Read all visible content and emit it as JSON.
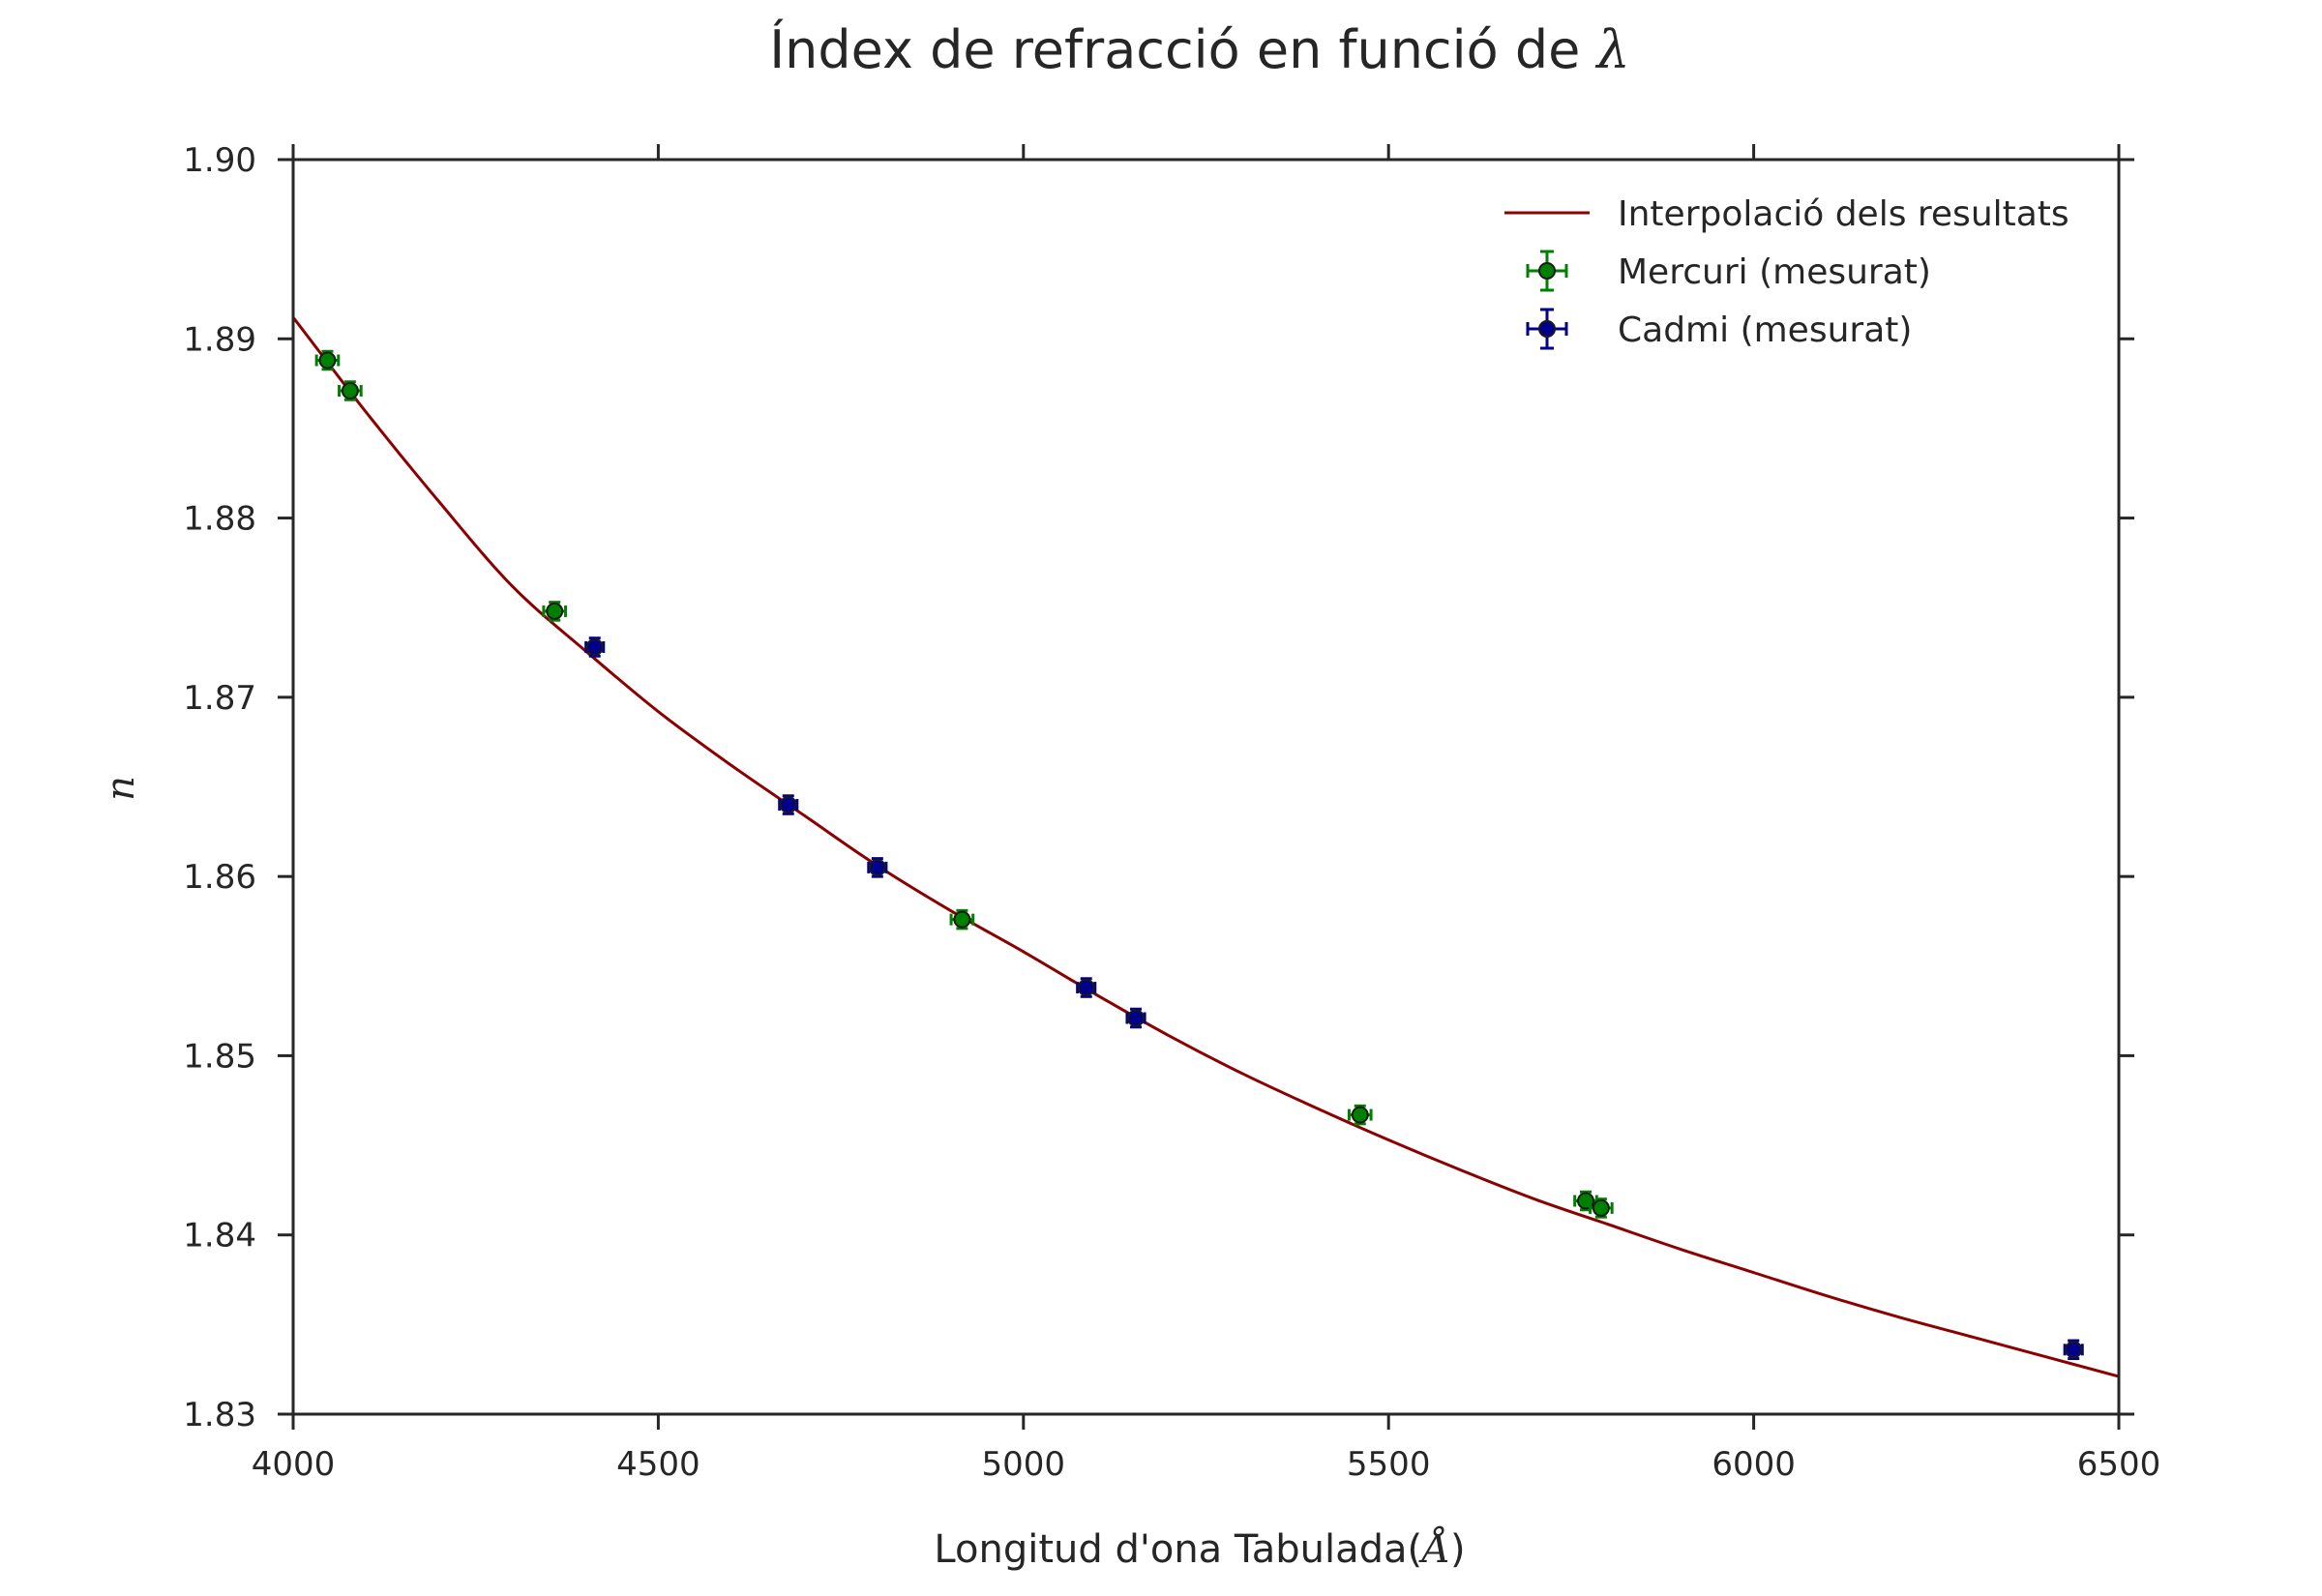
{
  "chart_data": {
    "type": "scatter",
    "title": {
      "text": "Índex de refracció en funció de ",
      "math": "λ"
    },
    "xlabel": {
      "text": "Longitud d'ona Tabulada(",
      "math": "Å",
      "suffix": ")"
    },
    "ylabel": "n",
    "xlim": [
      4000,
      6500
    ],
    "ylim": [
      1.83,
      1.9
    ],
    "x_ticks": [
      4000,
      4500,
      5000,
      5500,
      6000,
      6500
    ],
    "x_tick_labels": [
      "4000",
      "4500",
      "5000",
      "5500",
      "6000",
      "6500"
    ],
    "y_ticks": [
      1.83,
      1.84,
      1.85,
      1.86,
      1.87,
      1.88,
      1.89,
      1.9
    ],
    "y_tick_labels": [
      "1.83",
      "1.84",
      "1.85",
      "1.86",
      "1.87",
      "1.88",
      "1.89",
      "1.90"
    ],
    "grid": false,
    "legend_position": "top-right",
    "fit_curve": {
      "name": "Interpolació dels resultats",
      "color": "#8b0000",
      "x": [
        4000,
        4100,
        4200,
        4300,
        4400,
        4500,
        4600,
        4700,
        4800,
        4900,
        5000,
        5100,
        5200,
        5300,
        5400,
        5500,
        5600,
        5700,
        5800,
        5900,
        6000,
        6100,
        6200,
        6300,
        6400,
        6500
      ],
      "y": [
        1.8912,
        1.8859,
        1.8809,
        1.8762,
        1.8726,
        1.8692,
        1.8662,
        1.8634,
        1.8606,
        1.8581,
        1.8558,
        1.8534,
        1.8511,
        1.849,
        1.8471,
        1.8453,
        1.8436,
        1.842,
        1.8406,
        1.8392,
        1.8379,
        1.8366,
        1.8354,
        1.8343,
        1.8332,
        1.8321
      ]
    },
    "series": [
      {
        "name": "Mercuri (mesurat)",
        "color": "#008000",
        "x": [
          4047,
          4078,
          4358,
          4916,
          5461,
          5770,
          5791
        ],
        "y": [
          1.8888,
          1.8871,
          1.8748,
          1.8576,
          1.8467,
          1.8419,
          1.8415
        ],
        "x_err": 15,
        "y_err": 0.0005
      },
      {
        "name": "Cadmi (mesurat)",
        "color": "#00008b",
        "x": [
          4413,
          4678,
          4800,
          5086,
          5154,
          6438
        ],
        "y": [
          1.8728,
          1.864,
          1.8605,
          1.8538,
          1.8521,
          1.8336
        ],
        "x_err": 12,
        "y_err": 0.0005
      }
    ]
  }
}
